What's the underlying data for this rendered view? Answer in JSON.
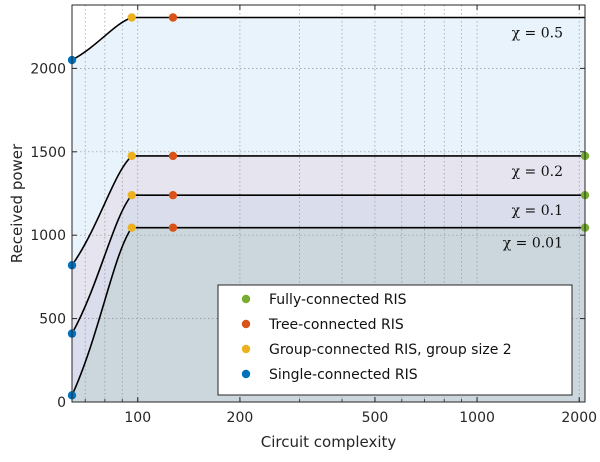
{
  "chart_data": {
    "type": "line",
    "xlabel": "Circuit complexity",
    "ylabel": "Received power",
    "xscale": "log",
    "xlim": [
      64,
      2080
    ],
    "ylim": [
      0,
      2380
    ],
    "xticks": [
      100,
      200,
      500,
      1000,
      2000
    ],
    "xtick_labels": [
      "100",
      "200",
      "500",
      "1000",
      "2000"
    ],
    "yticks": [
      0,
      500,
      1000,
      1500,
      2000
    ],
    "ytick_labels": [
      "0",
      "500",
      "1000",
      "1500",
      "2000"
    ],
    "grid": true,
    "legend_position": "bottom-right",
    "legend": [
      {
        "label": "Fully-connected RIS",
        "color": "#77ac30"
      },
      {
        "label": "Tree-connected RIS",
        "color": "#d95319"
      },
      {
        "label": "Group-connected RIS, group size 2",
        "color": "#edb120"
      },
      {
        "label": "Single-connected RIS",
        "color": "#0072bd"
      }
    ],
    "series": [
      {
        "chi_label": "χ = 0.5",
        "fill": "#e3f0fa",
        "single": [
          64,
          2050
        ],
        "group": [
          96,
          2305
        ],
        "tree": [
          127,
          2305
        ],
        "fully": [
          2080,
          2305
        ],
        "fully_marker": false
      },
      {
        "chi_label": "χ = 0.2",
        "fill": "#e6e0ec",
        "single": [
          64,
          820
        ],
        "group": [
          96,
          1475
        ],
        "tree": [
          127,
          1475
        ],
        "fully": [
          2080,
          1475
        ],
        "fully_marker": true
      },
      {
        "chi_label": "χ = 0.1",
        "fill": "#d6dcea",
        "single": [
          64,
          410
        ],
        "group": [
          96,
          1240
        ],
        "tree": [
          127,
          1240
        ],
        "fully": [
          2080,
          1240
        ],
        "fully_marker": true
      },
      {
        "chi_label": "χ = 0.01",
        "fill": "#c6d5d8",
        "single": [
          64,
          40
        ],
        "group": [
          96,
          1045
        ],
        "tree": [
          127,
          1045
        ],
        "fully": [
          2080,
          1045
        ],
        "fully_marker": true
      }
    ]
  }
}
